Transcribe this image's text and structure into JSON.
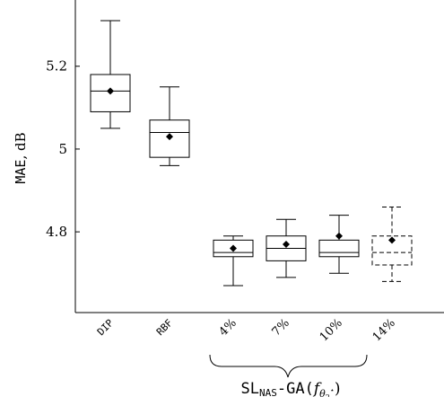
{
  "chart_data": {
    "type": "box",
    "ylabel_mono": "MAE",
    "ylabel_rest": ", dB",
    "ylim": [
      4.605,
      5.36
    ],
    "yticks": [
      {
        "value": 4.8,
        "label": "4.8"
      },
      {
        "value": 5.0,
        "label": "5"
      },
      {
        "value": 5.2,
        "label": "5.2"
      }
    ],
    "categories": [
      "DIP",
      "RBF",
      "4%",
      "7%",
      "10%",
      "14%"
    ],
    "mono_tick_labels": [
      true,
      true,
      false,
      false,
      false,
      false
    ],
    "boxes": [
      {
        "category": "DIP",
        "min": 5.05,
        "q1": 5.09,
        "median": 5.14,
        "q3": 5.18,
        "max": 5.31,
        "mean": 5.14,
        "dashed": false
      },
      {
        "category": "RBF",
        "min": 4.96,
        "q1": 4.98,
        "median": 5.04,
        "q3": 5.07,
        "max": 5.15,
        "mean": 5.03,
        "dashed": false
      },
      {
        "category": "4%",
        "min": 4.67,
        "q1": 4.74,
        "median": 4.75,
        "q3": 4.78,
        "max": 4.79,
        "mean": 4.76,
        "dashed": false
      },
      {
        "category": "7%",
        "min": 4.69,
        "q1": 4.73,
        "median": 4.76,
        "q3": 4.79,
        "max": 4.83,
        "mean": 4.77,
        "dashed": false
      },
      {
        "category": "10%",
        "min": 4.7,
        "q1": 4.74,
        "median": 4.75,
        "q3": 4.78,
        "max": 4.84,
        "mean": 4.79,
        "dashed": false
      },
      {
        "category": "14%",
        "min": 4.68,
        "q1": 4.72,
        "median": 4.75,
        "q3": 4.79,
        "max": 4.86,
        "mean": 4.78,
        "dashed": true
      }
    ],
    "group_label": {
      "sl": "SL",
      "nas": "NAS",
      "ga": "-GA(",
      "f": "f",
      "theta": "θ",
      "sub2": "2",
      "star": "⋆",
      "close": ")"
    }
  }
}
